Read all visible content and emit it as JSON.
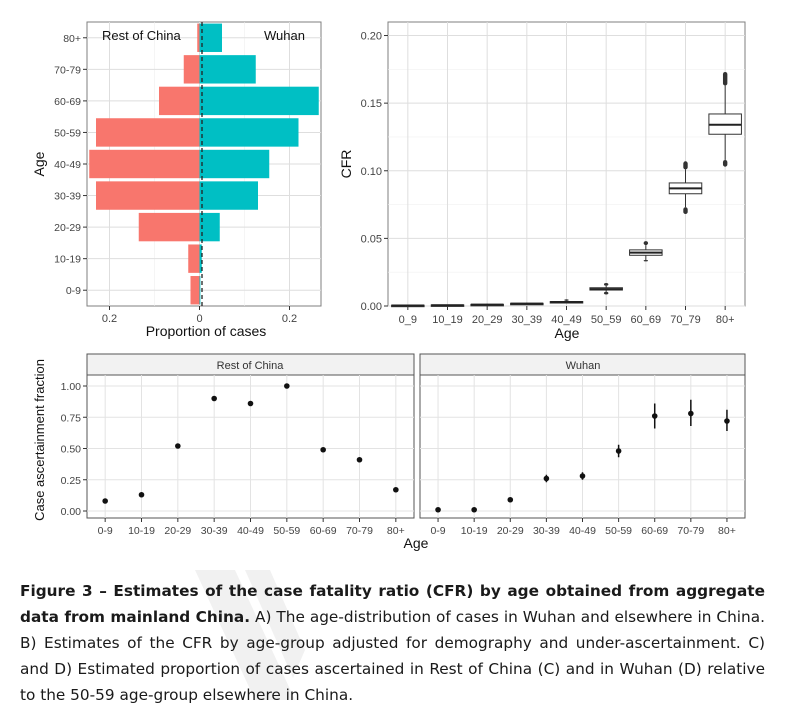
{
  "panel_a": {
    "left_label": "Rest of China",
    "right_label": "Wuhan",
    "ylabel": "Age",
    "xlabel": "Proportion of cases",
    "xticks": [
      "0.2",
      "0",
      "0.2"
    ]
  },
  "panel_b": {
    "ylabel": "CFR",
    "xlabel": "Age"
  },
  "panel_c": {
    "ylabel": "Case ascertainment fraction",
    "xlabel": "Age",
    "facet_left": "Rest of China",
    "facet_right": "Wuhan"
  },
  "caption": {
    "bold": "Figure 3 – Estimates of the case fatality ratio (CFR) by age obtained from aggregate data from mainland China.",
    "text": " A) The age-distribution of cases in Wuhan and elsewhere in China. B) Estimates of the CFR by age-group adjusted for demography and under-ascertainment. C) and D) Estimated proportion of cases ascertained in Rest of China (C) and in Wuhan (D) relative to the 50-59 age-group elsewhere in China."
  },
  "colors": {
    "rest_of_china": "#f8766d",
    "wuhan": "#00bfc4",
    "panel_bg": "#ffffff",
    "grid": "#ebebeb",
    "strip": "#f2f2f2"
  },
  "chart_data": [
    {
      "type": "bar",
      "subtype": "population-pyramid",
      "categories": [
        "0-9",
        "10-19",
        "20-29",
        "30-39",
        "40-49",
        "50-59",
        "60-69",
        "70-79",
        "80+"
      ],
      "series": [
        {
          "name": "Rest of China",
          "values": [
            0.02,
            0.025,
            0.135,
            0.23,
            0.245,
            0.23,
            0.09,
            0.035,
            0.005
          ]
        },
        {
          "name": "Wuhan",
          "values": [
            0.002,
            0.005,
            0.045,
            0.13,
            0.155,
            0.22,
            0.265,
            0.125,
            0.05
          ]
        }
      ],
      "ylabel": "Age",
      "xlabel": "Proportion of cases",
      "xticks": [
        -0.2,
        0,
        0.2
      ],
      "xtick_labels": [
        "0.2",
        "0",
        "0.2"
      ],
      "xlim": [
        -0.25,
        0.27
      ],
      "grid": true
    },
    {
      "type": "boxplot",
      "categories": [
        "0_9",
        "10_19",
        "20_29",
        "30_39",
        "40_49",
        "50_59",
        "60_69",
        "70_79",
        "80+"
      ],
      "boxes": [
        {
          "q1": 0.0002,
          "median": 0.0004,
          "q3": 0.0006,
          "lo": 0.0,
          "hi": 0.001,
          "outlier_lo": 0.0,
          "outlier_hi": 0.0012
        },
        {
          "q1": 0.0004,
          "median": 0.0006,
          "q3": 0.0008,
          "lo": 0.0002,
          "hi": 0.001,
          "outlier_lo": 0.0002,
          "outlier_hi": 0.0013
        },
        {
          "q1": 0.0008,
          "median": 0.001,
          "q3": 0.0012,
          "lo": 0.0005,
          "hi": 0.0017,
          "outlier_lo": 0.0005,
          "outlier_hi": 0.002
        },
        {
          "q1": 0.0016,
          "median": 0.0018,
          "q3": 0.002,
          "lo": 0.0012,
          "hi": 0.0025,
          "outlier_lo": 0.0011,
          "outlier_hi": 0.0028
        },
        {
          "q1": 0.0028,
          "median": 0.003,
          "q3": 0.0033,
          "lo": 0.0023,
          "hi": 0.0038,
          "outlier_lo": 0.002,
          "outlier_hi": 0.005
        },
        {
          "q1": 0.0118,
          "median": 0.0125,
          "q3": 0.0135,
          "lo": 0.0105,
          "hi": 0.015,
          "outlier_lo": 0.0085,
          "outlier_hi": 0.017
        },
        {
          "q1": 0.0375,
          "median": 0.0395,
          "q3": 0.0415,
          "lo": 0.034,
          "hi": 0.045,
          "outlier_lo": 0.033,
          "outlier_hi": 0.048
        },
        {
          "q1": 0.083,
          "median": 0.087,
          "q3": 0.091,
          "lo": 0.073,
          "hi": 0.101,
          "outlier_lo": 0.068,
          "outlier_hi": 0.107
        },
        {
          "q1": 0.127,
          "median": 0.134,
          "q3": 0.142,
          "lo": 0.108,
          "hi": 0.163,
          "outlier_lo": 0.103,
          "outlier_hi": 0.173
        }
      ],
      "ylabel": "CFR",
      "xlabel": "Age",
      "ylim": [
        0,
        0.21
      ],
      "yticks": [
        0.0,
        0.05,
        0.1,
        0.15,
        0.2
      ],
      "ytick_labels": [
        "0.00",
        "0.05",
        "0.10",
        "0.15",
        "0.20"
      ],
      "grid": true
    },
    {
      "type": "scatter",
      "facet": "Rest of China",
      "categories": [
        "0-9",
        "10-19",
        "20-29",
        "30-39",
        "40-49",
        "50-59",
        "60-69",
        "70-79",
        "80+"
      ],
      "values": [
        0.08,
        0.13,
        0.52,
        0.9,
        0.86,
        1.0,
        0.49,
        0.41,
        0.17
      ],
      "ylabel": "Case ascertainment fraction",
      "xlabel": "Age",
      "ylim": [
        0,
        1.0
      ],
      "yticks": [
        0.0,
        0.25,
        0.5,
        0.75,
        1.0
      ],
      "ytick_labels": [
        "0.00",
        "0.25",
        "0.50",
        "0.75",
        "1.00"
      ],
      "grid": true
    },
    {
      "type": "scatter",
      "facet": "Wuhan",
      "categories": [
        "0-9",
        "10-19",
        "20-29",
        "30-39",
        "40-49",
        "50-59",
        "60-69",
        "70-79",
        "80+"
      ],
      "values": [
        0.01,
        0.01,
        0.09,
        0.26,
        0.28,
        0.48,
        0.76,
        0.78,
        0.72
      ],
      "error_low": [
        0.0,
        0.0,
        0.08,
        0.23,
        0.25,
        0.43,
        0.66,
        0.68,
        0.64
      ],
      "error_high": [
        0.02,
        0.02,
        0.1,
        0.29,
        0.31,
        0.53,
        0.86,
        0.89,
        0.81
      ],
      "ylim": [
        0,
        1.0
      ],
      "grid": true
    }
  ]
}
